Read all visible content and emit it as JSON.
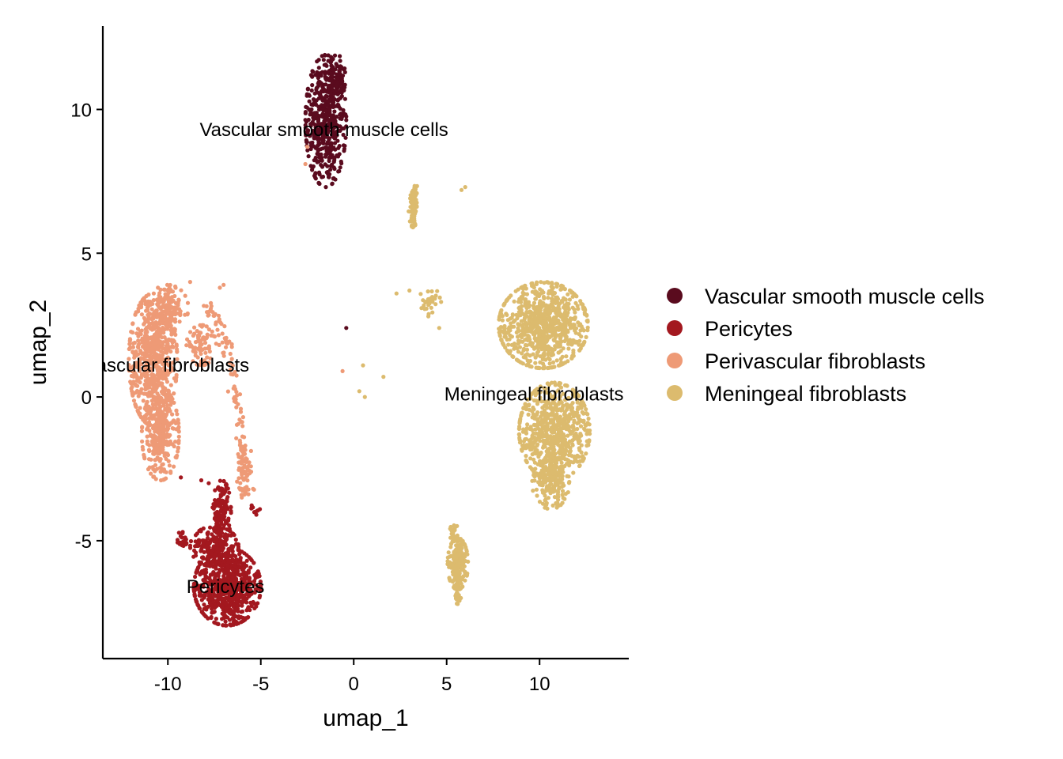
{
  "chart_data": {
    "type": "scatter",
    "title": "",
    "xlabel": "umap_1",
    "ylabel": "umap_2",
    "xlim": [
      -13.5,
      14.8
    ],
    "ylim": [
      -9.1,
      12.9
    ],
    "grid": false,
    "legend_position": "right",
    "xticks": [
      -10,
      -5,
      0,
      5,
      10
    ],
    "yticks": [
      -5,
      0,
      5,
      10
    ],
    "xtick_labels": [
      "-10",
      "-5",
      "0",
      "5",
      "10"
    ],
    "ytick_labels": [
      "-5",
      "0",
      "5",
      "10"
    ],
    "colors": {
      "Vascular smooth muscle cells": "#5a0b1e",
      "Pericytes": "#a3181f",
      "Perivascular fibroblasts": "#ee9a76",
      "Meningeal fibroblasts": "#dcbb6e"
    },
    "legend": [
      "Vascular smooth muscle cells",
      "Pericytes",
      "Perivascular fibroblasts",
      "Meningeal fibroblasts"
    ],
    "cluster_labels": [
      {
        "text": "Vascular smooth muscle cells",
        "x": -1.6,
        "y": 9.3
      },
      {
        "text": "Perivascular fibroblasts",
        "x": -10.9,
        "y": 1.1
      },
      {
        "text": "Meningeal fibroblasts",
        "x": 9.7,
        "y": 0.1
      },
      {
        "text": "Pericytes",
        "x": -6.9,
        "y": -6.6
      }
    ],
    "series": [
      {
        "name": "Vascular smooth muscle cells",
        "clusters": [
          {
            "cx": -1.5,
            "cy": 9.6,
            "rx": 1.1,
            "ry": 2.3,
            "n": 520
          },
          {
            "cx": -0.9,
            "cy": 11.1,
            "rx": 0.45,
            "ry": 0.8,
            "n": 60
          }
        ],
        "points": [
          [
            -0.4,
            2.4
          ]
        ]
      },
      {
        "name": "Pericytes",
        "clusters": [
          {
            "cx": -6.8,
            "cy": -6.6,
            "rx": 1.8,
            "ry": 1.35,
            "n": 700
          },
          {
            "cx": -7.5,
            "cy": -5.2,
            "rx": 1.3,
            "ry": 0.7,
            "n": 200
          },
          {
            "cx": -7.1,
            "cy": -4.0,
            "rx": 0.5,
            "ry": 1.1,
            "n": 140
          },
          {
            "cx": -9.2,
            "cy": -5.0,
            "rx": 0.3,
            "ry": 0.4,
            "n": 20
          },
          {
            "cx": -5.3,
            "cy": -3.9,
            "rx": 0.25,
            "ry": 0.2,
            "n": 10
          }
        ],
        "points": [
          [
            -9.3,
            -2.8
          ],
          [
            -8.2,
            -2.9
          ],
          [
            -7.8,
            -3.0
          ]
        ]
      },
      {
        "name": "Perivascular fibroblasts",
        "clusters": [
          {
            "cx": -10.8,
            "cy": 1.3,
            "rx": 1.3,
            "ry": 2.3,
            "n": 650
          },
          {
            "cx": -10.4,
            "cy": -1.3,
            "rx": 1.0,
            "ry": 1.6,
            "n": 300
          },
          {
            "cx": -10.0,
            "cy": 3.1,
            "rx": 1.1,
            "ry": 0.8,
            "n": 150
          },
          {
            "cx": -8.2,
            "cy": 1.8,
            "rx": 0.8,
            "ry": 0.7,
            "n": 80
          },
          {
            "cx": -6.0,
            "cy": -2.6,
            "rx": 0.3,
            "ry": 0.9,
            "n": 50
          }
        ],
        "arc": [
          [
            -8.0,
            3.2
          ],
          [
            -7.1,
            2.4
          ],
          [
            -6.6,
            1.0
          ],
          [
            -6.2,
            -0.7
          ],
          [
            -5.9,
            -2.1
          ],
          [
            -5.6,
            -3.3
          ]
        ],
        "points": [
          [
            -7.2,
            3.8
          ],
          [
            -7.0,
            3.9
          ],
          [
            -8.8,
            4.0
          ],
          [
            -0.6,
            0.9
          ],
          [
            -2.5,
            8.7
          ],
          [
            -2.6,
            8.1
          ]
        ]
      },
      {
        "name": "Meningeal fibroblasts",
        "clusters": [
          {
            "cx": 10.2,
            "cy": 2.5,
            "rx": 2.4,
            "ry": 1.5,
            "n": 800
          },
          {
            "cx": 10.8,
            "cy": -1.2,
            "rx": 1.9,
            "ry": 1.7,
            "n": 700
          },
          {
            "cx": 10.6,
            "cy": -3.0,
            "rx": 1.0,
            "ry": 0.9,
            "n": 150
          },
          {
            "cx": 5.6,
            "cy": -5.8,
            "rx": 0.55,
            "ry": 0.9,
            "n": 200
          },
          {
            "cx": 5.4,
            "cy": -4.8,
            "rx": 0.25,
            "ry": 0.4,
            "n": 30
          },
          {
            "cx": 5.6,
            "cy": -6.9,
            "rx": 0.2,
            "ry": 0.3,
            "n": 20
          },
          {
            "cx": 3.2,
            "cy": 6.6,
            "rx": 0.25,
            "ry": 0.7,
            "n": 80
          },
          {
            "cx": 3.3,
            "cy": 7.2,
            "rx": 0.15,
            "ry": 0.2,
            "n": 15
          },
          {
            "cx": 4.1,
            "cy": 3.3,
            "rx": 0.6,
            "ry": 0.5,
            "n": 30
          }
        ],
        "points": [
          [
            6.0,
            7.3
          ],
          [
            5.8,
            7.2
          ],
          [
            4.6,
            2.4
          ],
          [
            0.5,
            1.1
          ],
          [
            1.6,
            0.7
          ],
          [
            0.3,
            0.2
          ],
          [
            0.6,
            0.0
          ],
          [
            2.3,
            3.6
          ],
          [
            3.0,
            3.7
          ]
        ]
      }
    ]
  }
}
